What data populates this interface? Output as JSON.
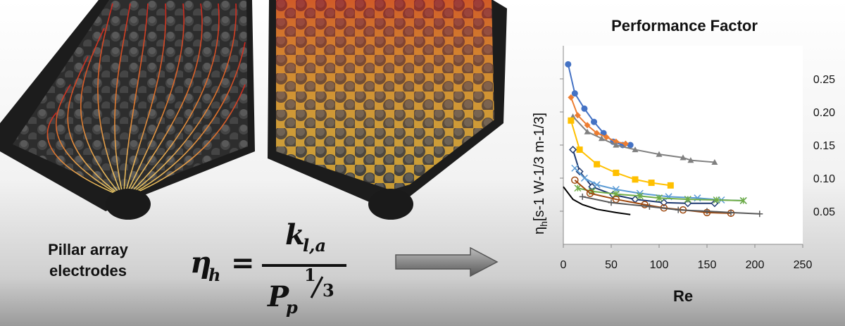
{
  "caption": {
    "line1": "Pillar array",
    "line2": "electrodes"
  },
  "equation": {
    "lhs_symbol": "η",
    "lhs_subscript": "h",
    "equals": "=",
    "numerator_symbol": "k",
    "numerator_subscript": "l,a",
    "denominator_symbol": "P",
    "denominator_subscript": "p",
    "exponent_num": "1",
    "exponent_den": "3"
  },
  "chart_data": {
    "type": "line",
    "title": "Performance Factor",
    "xlabel": "Re",
    "ylabel": "η",
    "ylabel_sub": "h",
    "ylabel_units": "[s-1  W-1/3  m-1/3]",
    "xlim": [
      0,
      250
    ],
    "ylim": [
      0,
      0.3
    ],
    "xticks": [
      "0",
      "50",
      "100",
      "150",
      "200",
      "250"
    ],
    "yticks": [
      "0.05",
      "0.10",
      "0.15",
      "0.20",
      "0.25"
    ],
    "grid": false,
    "series": [
      {
        "color": "#4472c4",
        "marker": "circle",
        "x": [
          5,
          12,
          22,
          32,
          42,
          52,
          62,
          70
        ],
        "y": [
          0.272,
          0.228,
          0.205,
          0.185,
          0.168,
          0.155,
          0.15,
          0.15
        ]
      },
      {
        "color": "#ed7d31",
        "marker": "diamond",
        "x": [
          8,
          15,
          25,
          35,
          45,
          55,
          65
        ],
        "y": [
          0.222,
          0.195,
          0.18,
          0.168,
          0.162,
          0.155,
          0.152
        ]
      },
      {
        "color": "#808080",
        "marker": "triangle",
        "x": [
          10,
          25,
          40,
          55,
          75,
          100,
          125,
          133,
          158
        ],
        "y": [
          0.193,
          0.17,
          0.16,
          0.15,
          0.143,
          0.136,
          0.131,
          0.127,
          0.124
        ]
      },
      {
        "color": "#ffc000",
        "marker": "square",
        "x": [
          8,
          17,
          35,
          55,
          75,
          92,
          112
        ],
        "y": [
          0.187,
          0.143,
          0.121,
          0.108,
          0.098,
          0.093,
          0.089
        ]
      },
      {
        "color": "#1f3a70",
        "marker": "open-diamond",
        "x": [
          10,
          17,
          30,
          52,
          75,
          105,
          130,
          158
        ],
        "y": [
          0.143,
          0.11,
          0.087,
          0.075,
          0.068,
          0.063,
          0.062,
          0.062
        ]
      },
      {
        "color": "#5b9bd5",
        "marker": "x",
        "x": [
          12,
          22,
          35,
          55,
          80,
          110,
          140,
          165,
          188
        ],
        "y": [
          0.115,
          0.1,
          0.09,
          0.083,
          0.077,
          0.072,
          0.07,
          0.067,
          0.066
        ]
      },
      {
        "color": "#70ad47",
        "marker": "star",
        "x": [
          15,
          30,
          55,
          80,
          100,
          130,
          160,
          188
        ],
        "y": [
          0.085,
          0.08,
          0.076,
          0.073,
          0.07,
          0.068,
          0.067,
          0.066
        ]
      },
      {
        "color": "#9e480e",
        "marker": "open-circle",
        "x": [
          12,
          28,
          55,
          85,
          105,
          125,
          150,
          175
        ],
        "y": [
          0.097,
          0.077,
          0.068,
          0.06,
          0.055,
          0.052,
          0.048,
          0.047
        ]
      },
      {
        "color": "#595959",
        "marker": "plus",
        "x": [
          20,
          50,
          90,
          120,
          150,
          175,
          205
        ],
        "y": [
          0.072,
          0.063,
          0.057,
          0.052,
          0.05,
          0.048,
          0.046
        ]
      },
      {
        "color": "#000000",
        "marker": "none",
        "x": [
          0,
          10,
          20,
          35,
          55,
          70
        ],
        "y": [
          0.087,
          0.068,
          0.06,
          0.053,
          0.048,
          0.045
        ]
      }
    ]
  }
}
